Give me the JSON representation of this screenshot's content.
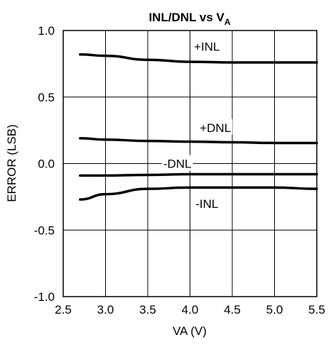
{
  "chart_data": {
    "type": "line",
    "title": "INL/DNL vs V",
    "title_subscript": "A",
    "xlabel": "VA (V)",
    "ylabel": "ERROR (LSB)",
    "xlim": [
      2.5,
      5.5
    ],
    "ylim": [
      -1.0,
      1.0
    ],
    "x_ticks": [
      2.5,
      3.0,
      3.5,
      4.0,
      4.5,
      5.0,
      5.5
    ],
    "x_tick_labels": [
      "2.5",
      "3.0",
      "3.5",
      "4.0",
      "4.5",
      "5.0",
      "5.5"
    ],
    "y_ticks": [
      -1.0,
      -0.5,
      0.0,
      0.5,
      1.0
    ],
    "y_tick_labels": [
      "-1.0",
      "-0.5",
      "0.0",
      "0.5",
      "1.0"
    ],
    "grid": true,
    "series": [
      {
        "name": "+INL",
        "label_at": [
          4.2,
          0.88
        ],
        "x": [
          2.7,
          3.0,
          3.5,
          4.0,
          4.5,
          5.0,
          5.5
        ],
        "y": [
          0.82,
          0.81,
          0.78,
          0.765,
          0.76,
          0.76,
          0.76
        ]
      },
      {
        "name": "+DNL",
        "label_at": [
          4.3,
          0.27
        ],
        "x": [
          2.7,
          3.0,
          3.5,
          4.0,
          4.5,
          5.0,
          5.5
        ],
        "y": [
          0.19,
          0.18,
          0.17,
          0.165,
          0.16,
          0.155,
          0.155
        ]
      },
      {
        "name": "-DNL",
        "label_at": [
          3.85,
          0.0
        ],
        "x": [
          2.7,
          3.0,
          3.5,
          4.0,
          4.5,
          5.0,
          5.5
        ],
        "y": [
          -0.09,
          -0.09,
          -0.085,
          -0.08,
          -0.08,
          -0.08,
          -0.08
        ]
      },
      {
        "name": "-INL",
        "label_at": [
          4.2,
          -0.3
        ],
        "x": [
          2.7,
          3.0,
          3.5,
          4.0,
          4.5,
          5.0,
          5.5
        ],
        "y": [
          -0.27,
          -0.23,
          -0.19,
          -0.18,
          -0.18,
          -0.18,
          -0.19
        ]
      }
    ]
  }
}
